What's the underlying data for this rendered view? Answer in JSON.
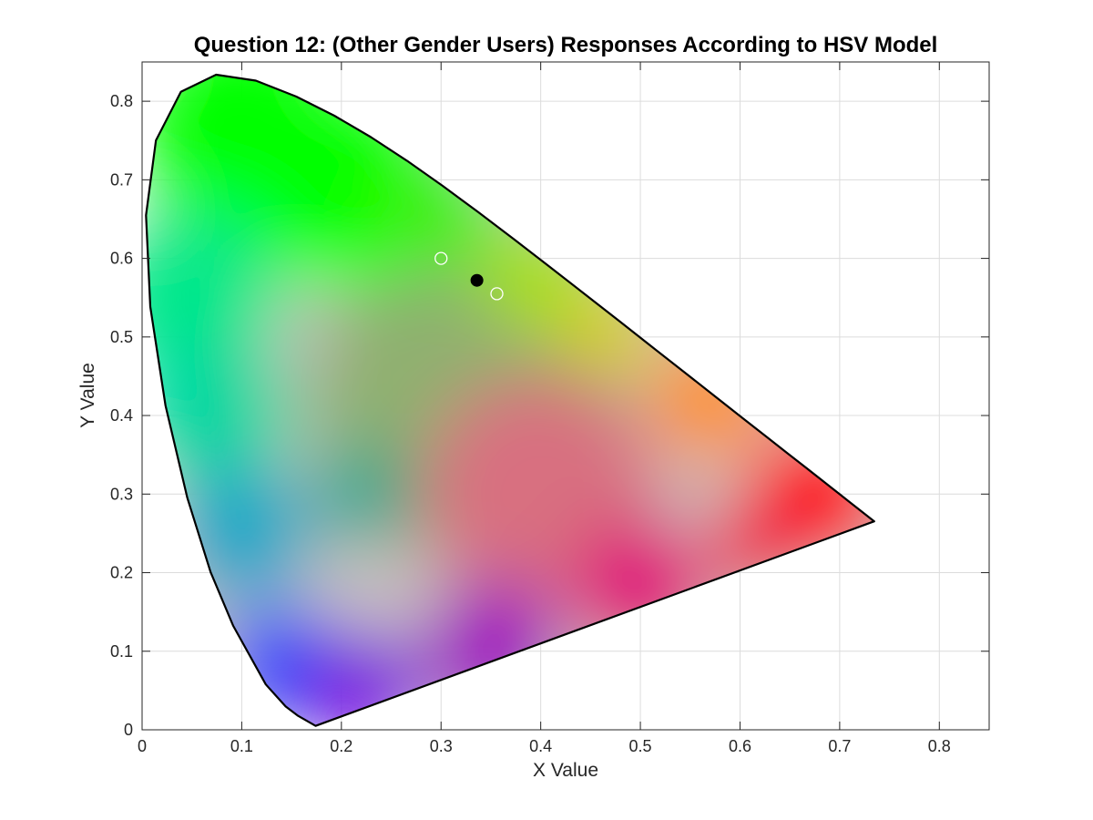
{
  "chart_data": {
    "type": "scatter",
    "title": "Question 12: (Other Gender Users) Responses According to HSV Model",
    "xlabel": "X Value",
    "ylabel": "Y Value",
    "xlim": [
      0,
      0.85
    ],
    "ylim": [
      0,
      0.85
    ],
    "xticks": [
      0,
      0.1,
      0.2,
      0.3,
      0.4,
      0.5,
      0.6,
      0.7,
      0.8
    ],
    "xtick_labels": [
      "0",
      "0.1",
      "0.2",
      "0.3",
      "0.4",
      "0.5",
      "0.6",
      "0.7",
      "0.8"
    ],
    "yticks": [
      0,
      0.1,
      0.2,
      0.3,
      0.4,
      0.5,
      0.6,
      0.7,
      0.8
    ],
    "ytick_labels": [
      "0",
      "0.1",
      "0.2",
      "0.3",
      "0.4",
      "0.5",
      "0.6",
      "0.7",
      "0.8"
    ],
    "grid": true,
    "background": "CIE 1931 chromaticity diagram (spectral locus)",
    "gamut_colors": {
      "red": "#ff0000",
      "green": "#00ff00",
      "blue": "#0040ff",
      "cyan": "#00e88a",
      "violet": "#7a00e0",
      "magenta": "#e0007a",
      "yellow": "#d8d000",
      "orange": "#ff9000",
      "white": "#c8c0c0"
    },
    "locus": [
      [
        0.1741,
        0.005
      ],
      [
        0.1566,
        0.0177
      ],
      [
        0.144,
        0.0297
      ],
      [
        0.1241,
        0.0578
      ],
      [
        0.0913,
        0.1327
      ],
      [
        0.0687,
        0.2007
      ],
      [
        0.0454,
        0.295
      ],
      [
        0.0235,
        0.4127
      ],
      [
        0.0082,
        0.5384
      ],
      [
        0.0039,
        0.6548
      ],
      [
        0.0139,
        0.7502
      ],
      [
        0.0389,
        0.812
      ],
      [
        0.0743,
        0.8338
      ],
      [
        0.1142,
        0.8262
      ],
      [
        0.1547,
        0.8059
      ],
      [
        0.1929,
        0.7816
      ],
      [
        0.2296,
        0.7543
      ],
      [
        0.2658,
        0.7243
      ],
      [
        0.3016,
        0.6923
      ],
      [
        0.3373,
        0.6589
      ],
      [
        0.3731,
        0.6245
      ],
      [
        0.4087,
        0.5896
      ],
      [
        0.4441,
        0.5547
      ],
      [
        0.4788,
        0.5202
      ],
      [
        0.5125,
        0.4866
      ],
      [
        0.5448,
        0.4544
      ],
      [
        0.5752,
        0.4242
      ],
      [
        0.6029,
        0.3965
      ],
      [
        0.627,
        0.3725
      ],
      [
        0.6482,
        0.3514
      ],
      [
        0.6658,
        0.334
      ],
      [
        0.6801,
        0.3197
      ],
      [
        0.6915,
        0.3083
      ],
      [
        0.7006,
        0.2993
      ],
      [
        0.7079,
        0.292
      ],
      [
        0.714,
        0.2859
      ],
      [
        0.7347,
        0.2653
      ]
    ],
    "series": [
      {
        "marker": "open-circle",
        "marker_color": "#ffffff",
        "points": [
          {
            "x": 0.3,
            "y": 0.6
          },
          {
            "x": 0.356,
            "y": 0.555
          }
        ]
      },
      {
        "marker": "filled-circle",
        "marker_color": "#000000",
        "points": [
          {
            "x": 0.336,
            "y": 0.572
          }
        ]
      }
    ]
  }
}
